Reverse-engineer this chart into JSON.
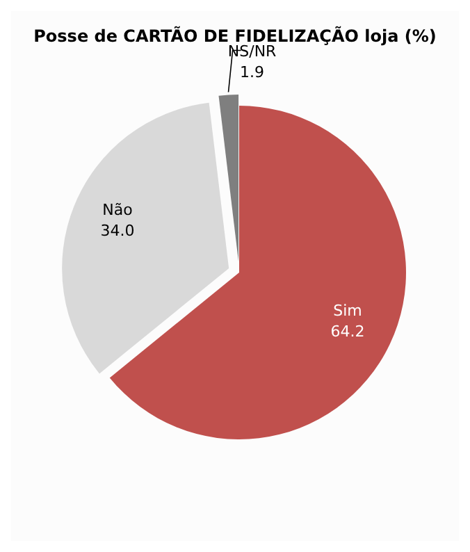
{
  "chart_data": {
    "type": "pie",
    "title": "Posse de CARTÃO DE FIDELIZAÇÃO loja (%)",
    "categories": [
      "Sim",
      "Não",
      "NS/NR"
    ],
    "values": [
      64.2,
      34.0,
      1.9
    ],
    "value_labels": [
      "64.2",
      "34.0",
      "1.9"
    ],
    "colors": [
      "#c0504d",
      "#d9d9d9",
      "#7f7f7f"
    ]
  }
}
